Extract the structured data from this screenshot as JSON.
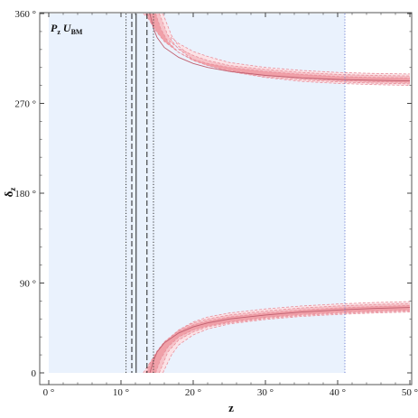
{
  "chart_data": {
    "type": "area",
    "xlabel": "z",
    "ylabel": "δz",
    "ylabel_main": "δ",
    "ylabel_sub": "z",
    "xlim": [
      0,
      50
    ],
    "ylim": [
      0,
      360
    ],
    "x_ticks": [
      "0 °",
      "10 °",
      "20 °",
      "30 °",
      "40 °",
      "50 °"
    ],
    "x_tick_values": [
      0,
      10,
      20,
      30,
      40,
      50
    ],
    "y_ticks": [
      "0",
      "90 °",
      "180 °",
      "270 °",
      "360 °"
    ],
    "y_tick_values": [
      0,
      90,
      180,
      270,
      360
    ],
    "panel_label": {
      "P": "P",
      "P_sub": "z",
      "U": "U",
      "U_sub": "BM"
    },
    "allowed_region": {
      "x_range": [
        0,
        41
      ],
      "color": "#eaf2fd"
    },
    "vertical_lines": [
      {
        "x": 10.7,
        "style": "dotted",
        "color": "#333333"
      },
      {
        "x": 11.5,
        "style": "dashed",
        "color": "#222222"
      },
      {
        "x": 12.1,
        "style": "solid",
        "color": "#222222"
      },
      {
        "x": 13.6,
        "style": "dashed",
        "color": "#222222"
      },
      {
        "x": 14.5,
        "style": "dotted",
        "color": "#333333"
      },
      {
        "x": 41.0,
        "style": "dotted",
        "color": "#6f7fd0"
      }
    ],
    "band_colors": {
      "inner": "#f0a0a8",
      "middle": "#f6c3c9",
      "outer": "#fbe2e6",
      "center_line": "#c06070"
    },
    "bands_upper": {
      "center": {
        "x": [
          14,
          14.5,
          15,
          16,
          18,
          20,
          22,
          25,
          30,
          35,
          40,
          45,
          50
        ],
        "y": [
          360,
          345,
          336,
          326,
          316,
          310,
          306,
          302,
          298,
          295.5,
          294,
          293.2,
          292.5
        ]
      },
      "inner": [
        {
          "x": [
            13.6,
            14.2,
            15,
            16,
            18,
            20,
            22,
            25,
            30,
            35,
            40,
            45,
            50
          ],
          "y": [
            360,
            350,
            341,
            332,
            321,
            314,
            310,
            306,
            302,
            299,
            297,
            296,
            295.5
          ]
        },
        {
          "x": [
            14.8,
            15.5,
            16.5,
            18,
            20,
            22,
            25,
            30,
            35,
            40,
            45,
            50
          ],
          "y": [
            360,
            345,
            332,
            321,
            313,
            308,
            303,
            298,
            295,
            293,
            291.8,
            291
          ]
        }
      ],
      "middle": [
        {
          "x": [
            13.4,
            14,
            15,
            16,
            18,
            20,
            22,
            25,
            30,
            35,
            40,
            45,
            50
          ],
          "y": [
            360,
            352,
            344,
            336,
            325,
            318,
            313,
            308,
            304,
            301,
            299,
            298,
            297.5
          ]
        },
        {
          "x": [
            15.3,
            16.5,
            18,
            20,
            22,
            25,
            30,
            35,
            40,
            45,
            50
          ],
          "y": [
            360,
            338,
            324,
            314,
            308,
            302,
            296.5,
            293.5,
            291.5,
            290.3,
            289.5
          ]
        }
      ],
      "outer": [
        {
          "x": [
            13.1,
            13.8,
            15,
            16,
            18,
            20,
            22,
            25,
            30,
            35,
            40,
            45,
            50
          ],
          "y": [
            360,
            355,
            348,
            341,
            330,
            322,
            317,
            311,
            306,
            303,
            301,
            300,
            299.5
          ]
        },
        {
          "x": [
            15.8,
            17,
            18,
            20,
            22,
            25,
            30,
            35,
            40,
            45,
            50
          ],
          "y": [
            360,
            338,
            327,
            316,
            309,
            302,
            296,
            292,
            290,
            288.8,
            288
          ]
        }
      ]
    },
    "bands_lower": {
      "center": {
        "x": [
          14,
          14.5,
          15,
          16,
          18,
          20,
          22,
          25,
          30,
          35,
          40,
          45,
          50
        ],
        "y": [
          0,
          12,
          21,
          30,
          40,
          46,
          50,
          54,
          58,
          61,
          63,
          64.5,
          65.5
        ]
      },
      "inner": [
        {
          "x": [
            13.6,
            14.2,
            15,
            16,
            18,
            20,
            22,
            25,
            30,
            35,
            40,
            45,
            50
          ],
          "y": [
            0,
            12,
            22,
            31,
            42,
            48,
            52,
            56,
            60,
            63,
            65,
            66.5,
            67.5
          ]
        },
        {
          "x": [
            14.8,
            15.5,
            16.5,
            18,
            20,
            22,
            25,
            30,
            35,
            40,
            45,
            50
          ],
          "y": [
            0,
            14,
            26,
            36,
            43,
            47,
            51,
            55.5,
            58.5,
            60.5,
            62,
            63
          ]
        }
      ],
      "middle": [
        {
          "x": [
            13.4,
            14,
            15,
            16,
            18,
            20,
            22,
            25,
            30,
            35,
            40,
            45,
            50
          ],
          "y": [
            0,
            10,
            21,
            31,
            43,
            50,
            54,
            58,
            62,
            65,
            67,
            68.5,
            69.5
          ]
        },
        {
          "x": [
            15.3,
            16.5,
            18,
            20,
            22,
            25,
            30,
            35,
            40,
            45,
            50
          ],
          "y": [
            0,
            21,
            33,
            41,
            46,
            50,
            54.5,
            57.5,
            59.5,
            61,
            62
          ]
        }
      ],
      "outer": [
        {
          "x": [
            13.1,
            13.8,
            15,
            16,
            18,
            20,
            22,
            25,
            30,
            35,
            40,
            45,
            50
          ],
          "y": [
            0,
            8,
            19,
            30,
            43,
            51,
            56,
            60,
            64,
            67,
            69,
            70.5,
            71.5
          ]
        },
        {
          "x": [
            15.8,
            17,
            18,
            20,
            22,
            25,
            30,
            35,
            40,
            45,
            50
          ],
          "y": [
            0,
            18,
            28,
            38,
            44,
            49,
            53.5,
            56.5,
            58.5,
            60,
            61
          ]
        }
      ]
    }
  }
}
